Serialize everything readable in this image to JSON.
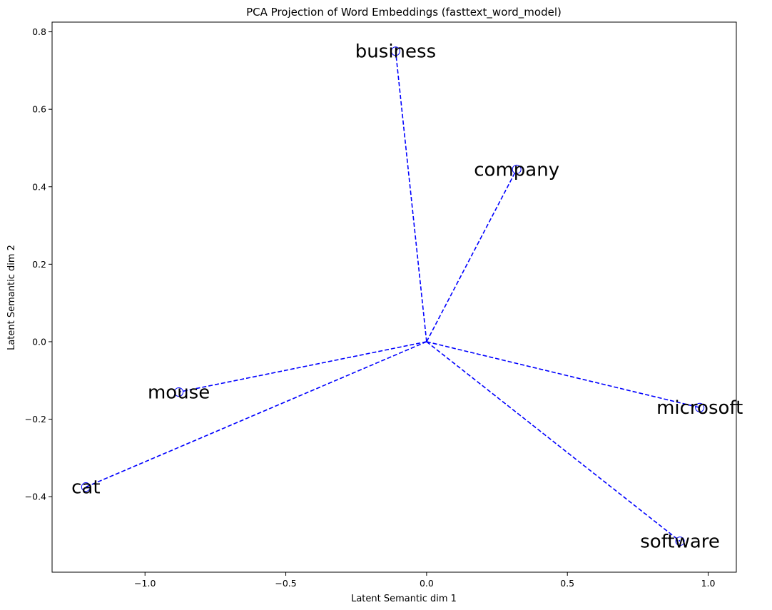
{
  "chart_data": {
    "type": "scatter",
    "title": "PCA Projection of Word Embeddings (fasttext_word_model)",
    "xlabel": "Latent Semantic dim 1",
    "ylabel": "Latent Semantic dim 2",
    "xlim": [
      -1.33,
      1.1
    ],
    "ylim": [
      -0.595,
      0.825
    ],
    "xticks": [
      -1.0,
      -0.5,
      0.0,
      0.5,
      1.0
    ],
    "xtick_labels": [
      "−1.0",
      "−0.5",
      "0.0",
      "0.5",
      "1.0"
    ],
    "yticks": [
      -0.4,
      -0.2,
      0.0,
      0.2,
      0.4,
      0.6,
      0.8
    ],
    "ytick_labels": [
      "−0.4",
      "−0.2",
      "0.0",
      "0.2",
      "0.4",
      "0.6",
      "0.8"
    ],
    "origin": [
      0,
      0
    ],
    "grid": false,
    "line_style": "dashed",
    "color": "#0000ff",
    "points": [
      {
        "word": "business",
        "x": -0.11,
        "y": 0.75
      },
      {
        "word": "company",
        "x": 0.32,
        "y": 0.445
      },
      {
        "word": "mouse",
        "x": -0.88,
        "y": -0.13
      },
      {
        "word": "microsoft",
        "x": 0.97,
        "y": -0.17
      },
      {
        "word": "cat",
        "x": -1.21,
        "y": -0.375
      },
      {
        "word": "software",
        "x": 0.9,
        "y": -0.515
      }
    ]
  }
}
